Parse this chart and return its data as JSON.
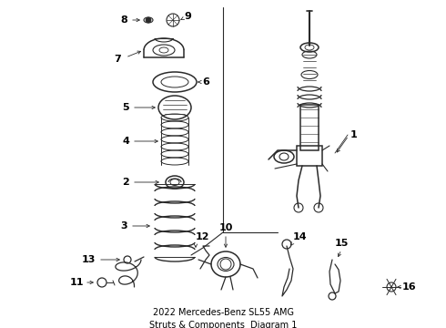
{
  "title": "2022 Mercedes-Benz SL55 AMG\nStruts & Components  Diagram 1",
  "title_fontsize": 7.0,
  "bg_color": "#ffffff",
  "line_color": "#2a2a2a",
  "label_color": "#000000",
  "fig_width": 4.9,
  "fig_height": 3.6,
  "dpi": 100
}
